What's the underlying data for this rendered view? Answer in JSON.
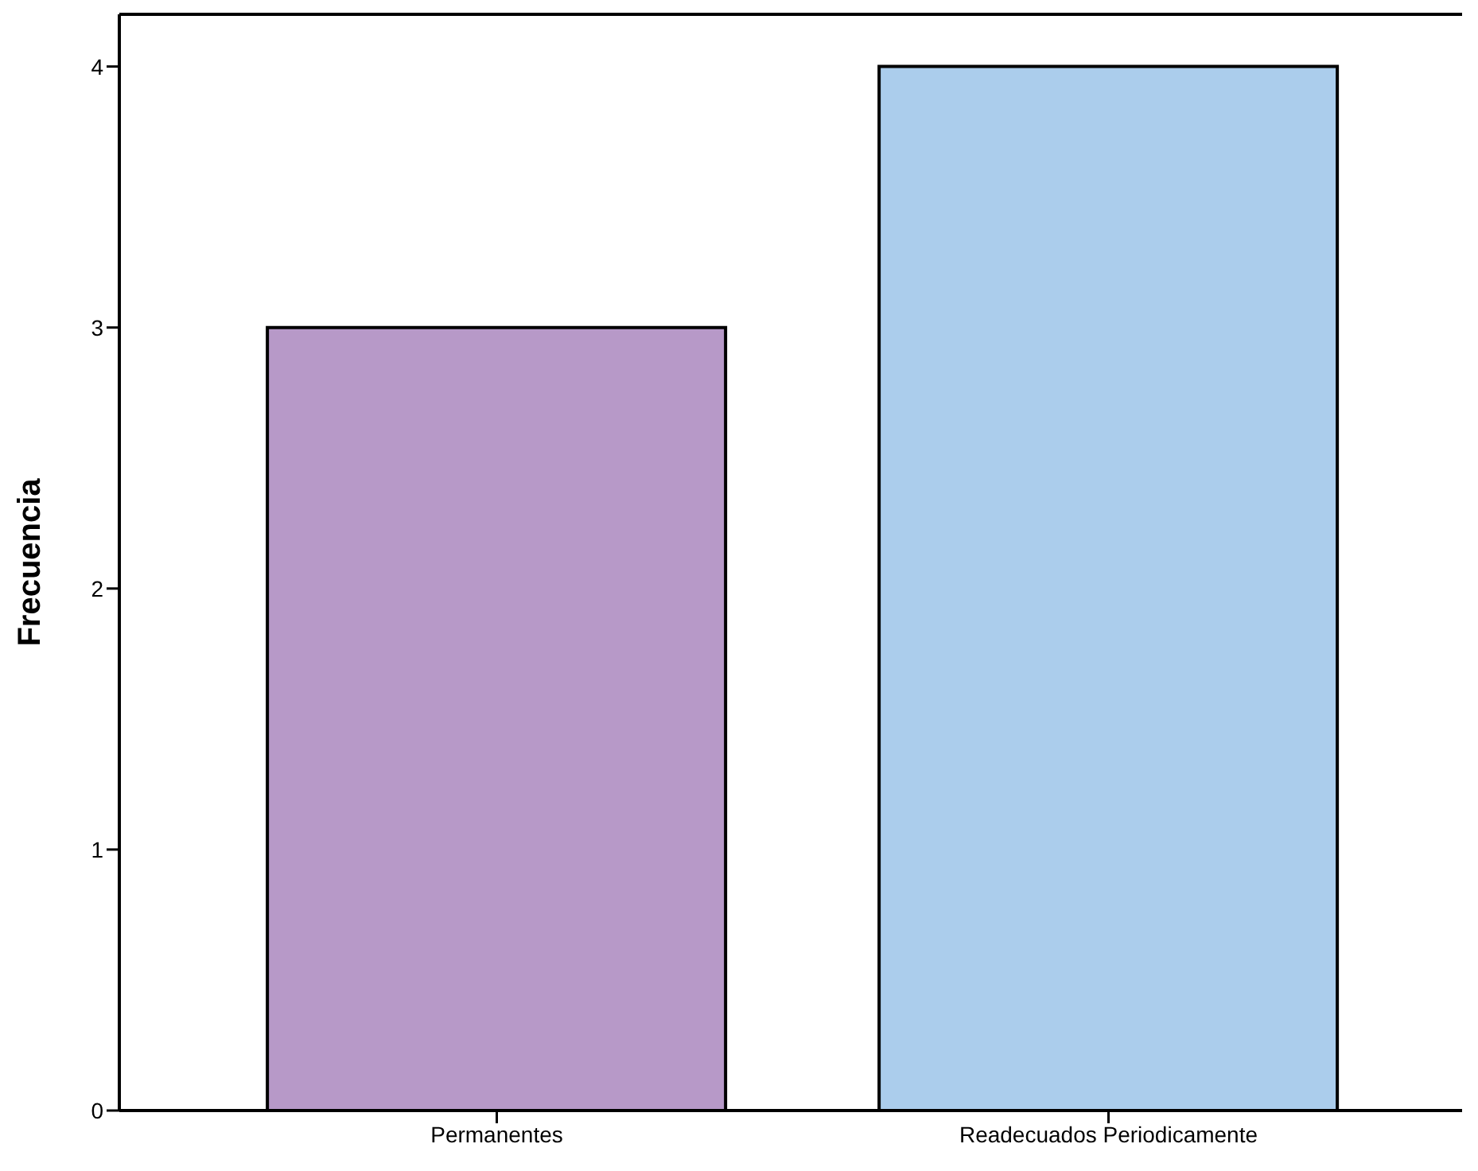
{
  "chart_data": {
    "type": "bar",
    "ylabel": "Frecuencia",
    "categories": [
      "Permanentes",
      "Readecuados Periodicamente"
    ],
    "values": [
      3,
      4
    ],
    "colors": [
      "#b799c8",
      "#abcdec"
    ],
    "ylim": [
      0,
      4.2
    ],
    "yticks": [
      0,
      1,
      2,
      3,
      4
    ],
    "grid": false,
    "legend": false
  }
}
